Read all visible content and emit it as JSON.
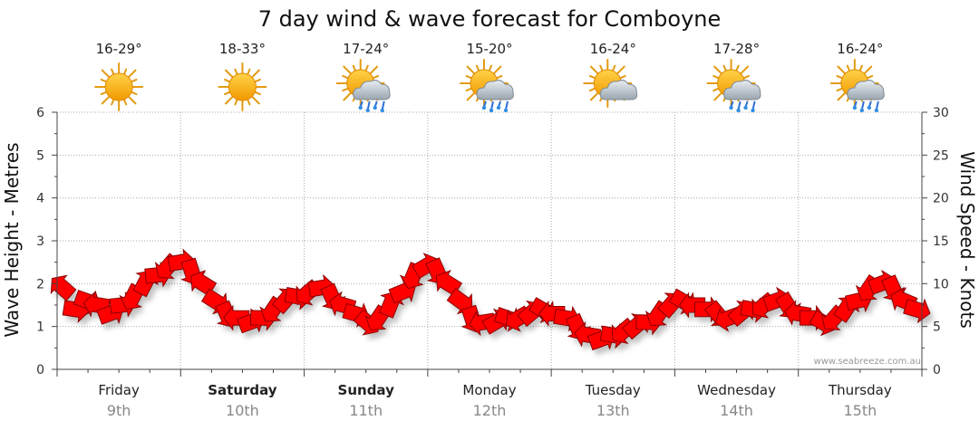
{
  "chart_data": {
    "type": "line",
    "title": "7 day wind & wave forecast for Comboyne",
    "ylabel_left": "Wave Height - Metres",
    "ylabel_right": "Wind Speed - Knots",
    "ylim_left": [
      0,
      6
    ],
    "ylim_right": [
      0,
      30
    ],
    "yticks_left": [
      "0",
      "1",
      "2",
      "3",
      "4",
      "5",
      "6"
    ],
    "yticks_right": [
      "0",
      "5",
      "10",
      "15",
      "20",
      "25",
      "30"
    ],
    "grid": true,
    "credit": "www.seabreeze.com.au",
    "days": [
      {
        "day": "Friday",
        "date": "9th",
        "temp": "16-29°",
        "icon": "sun-icon",
        "bold": false
      },
      {
        "day": "Saturday",
        "date": "10th",
        "temp": "18-33°",
        "icon": "sun-icon",
        "bold": true
      },
      {
        "day": "Sunday",
        "date": "11th",
        "temp": "17-24°",
        "icon": "sun-cloud-rain-icon",
        "bold": true
      },
      {
        "day": "Monday",
        "date": "12th",
        "temp": "15-20°",
        "icon": "sun-cloud-rain-icon",
        "bold": false
      },
      {
        "day": "Tuesday",
        "date": "13th",
        "temp": "16-24°",
        "icon": "sun-cloud-icon",
        "bold": false
      },
      {
        "day": "Wednesday",
        "date": "14th",
        "temp": "17-28°",
        "icon": "sun-cloud-rain-icon",
        "bold": false
      },
      {
        "day": "Thursday",
        "date": "15th",
        "temp": "16-24°",
        "icon": "sun-cloud-rain-icon",
        "bold": false
      }
    ],
    "series": [
      {
        "unit": "knots",
        "color": "#ff0000",
        "values": [
          9.5,
          7,
          8,
          7.5,
          6.5,
          7.5,
          8.5,
          10,
          11,
          12,
          12.5,
          11.5,
          10,
          8,
          6.5,
          6,
          5.5,
          6,
          7,
          8,
          8.5,
          9,
          9.5,
          8.5,
          7.5,
          6.5,
          5.5,
          6,
          7.5,
          9,
          11,
          12,
          11.5,
          10,
          8,
          6,
          5.5,
          5.5,
          6,
          6,
          6.5,
          7,
          6.5,
          6,
          5,
          4,
          3.5,
          4,
          4.5,
          5,
          5.5,
          6.5,
          7.5,
          8,
          7.5,
          7,
          6.5,
          6,
          6.5,
          7,
          7.5,
          8,
          7.5,
          6.5,
          6,
          5.5,
          6,
          7,
          8,
          9.5,
          10,
          9.5,
          8,
          7
        ]
      }
    ]
  }
}
